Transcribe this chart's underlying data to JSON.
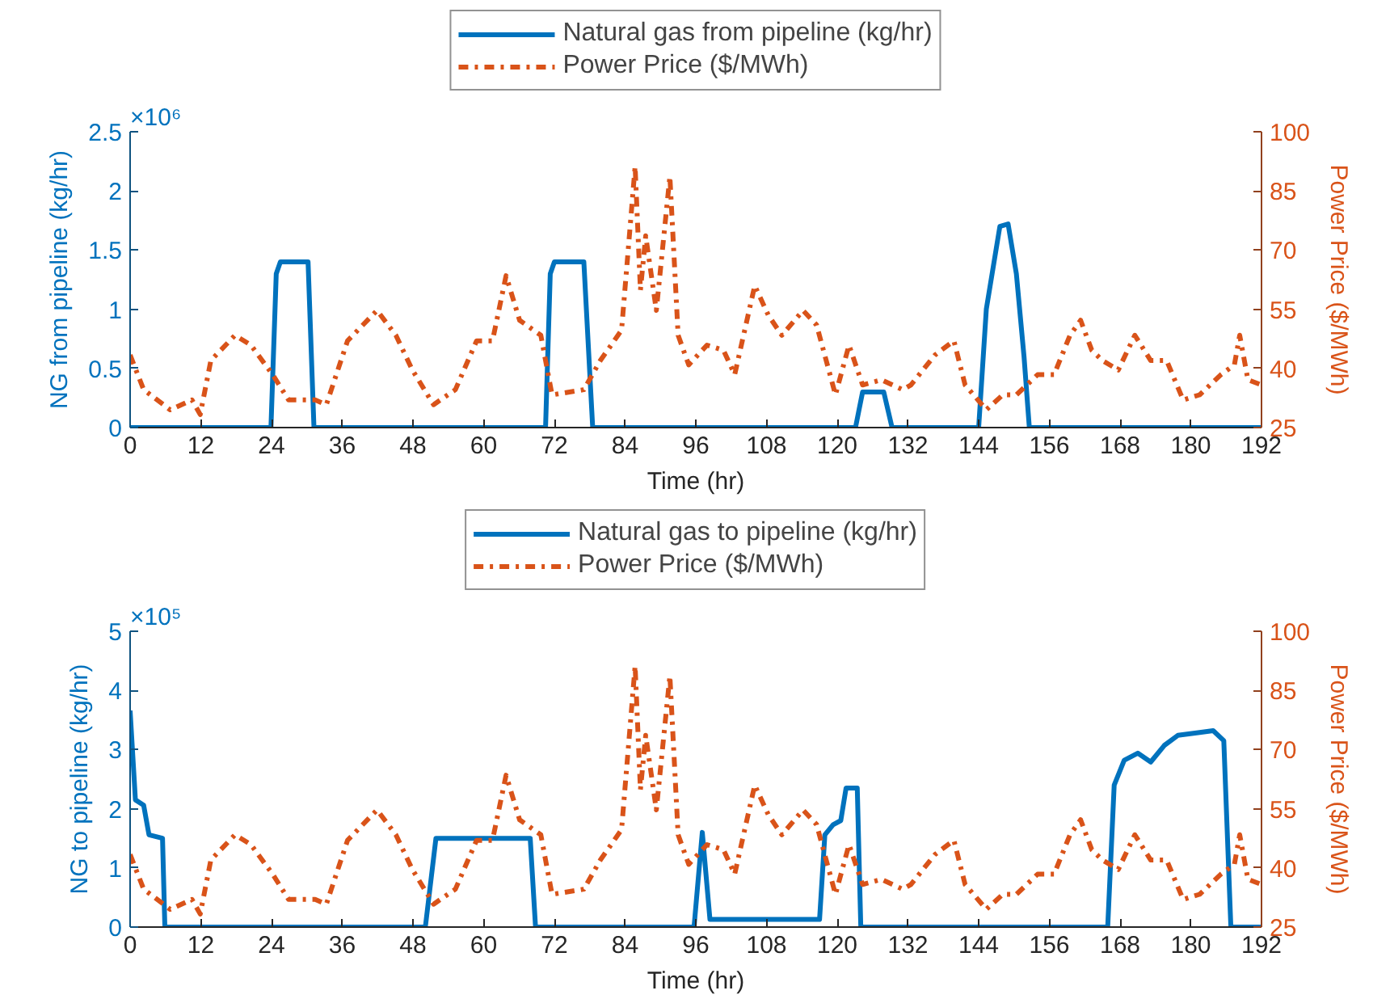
{
  "chart_data": [
    {
      "type": "line",
      "xlabel": "Time (hr)",
      "ylabel": "NG from pipeline (kg/hr)",
      "y2label": "Power Price ($/MWh)",
      "xlim": [
        0,
        192
      ],
      "xticks": [
        0,
        12,
        24,
        36,
        48,
        60,
        72,
        84,
        96,
        108,
        120,
        132,
        144,
        156,
        168,
        180,
        192
      ],
      "ylim": [
        0,
        2.5
      ],
      "yticks": [
        0,
        0.5,
        1,
        1.5,
        2,
        2.5
      ],
      "y2lim": [
        25,
        100
      ],
      "y2ticks": [
        25,
        40,
        55,
        70,
        85,
        100
      ],
      "annotations": [
        "×10⁶"
      ],
      "legend": "top",
      "grid": false,
      "series": [
        {
          "name": "Natural gas from pipeline (kg/hr)",
          "color": "#0072bd",
          "line_style": "solid",
          "x": [
            0,
            23.9,
            24.8,
            25.5,
            30.2,
            31.2,
            70.5,
            71.3,
            72,
            77,
            78.5,
            123.1,
            124.3,
            127.9,
            129.3,
            144,
            145.3,
            147.6,
            149,
            150.4,
            151.7,
            152.6,
            192
          ],
          "values": [
            0,
            0,
            1.3,
            1.4,
            1.4,
            0,
            0,
            1.3,
            1.4,
            1.4,
            0,
            0,
            0.3,
            0.3,
            0,
            0,
            1.0,
            1.7,
            1.72,
            1.3,
            0.6,
            0,
            0
          ]
        },
        {
          "name": "Power Price ($/MWh)",
          "color": "#d95319",
          "line_style": "dashdot",
          "axis": "y2",
          "x": [
            0,
            2.3,
            6.8,
            10.5,
            11.9,
            13.7,
            17.8,
            20.5,
            24.2,
            26.9,
            31.4,
            33.3,
            36.9,
            41.9,
            45.1,
            47.9,
            51.5,
            55.2,
            58.8,
            61.5,
            63.8,
            66.1,
            69.7,
            71.6,
            77,
            79.8,
            83.4,
            85.7,
            86.6,
            87.5,
            89.3,
            91.6,
            93,
            94.8,
            97.9,
            100.7,
            102.6,
            106,
            108.3,
            110.6,
            114.2,
            116.5,
            119.7,
            122,
            124.3,
            127.5,
            131.1,
            132.5,
            136.6,
            139.8,
            141.7,
            145.3,
            148.1,
            150.4,
            154,
            156.8,
            159.5,
            161.3,
            163.2,
            165,
            167.7,
            170.5,
            173.2,
            175.9,
            178.7,
            181.5,
            185.1,
            187.4,
            188.3,
            189.7,
            192
          ],
          "values": [
            43.4,
            34.6,
            29.5,
            32,
            28.3,
            42,
            48.4,
            45.9,
            38.4,
            32,
            32,
            30.8,
            47,
            54.7,
            48.4,
            39.6,
            30.8,
            34.6,
            47,
            47,
            63.5,
            52.2,
            48.4,
            33.3,
            34.6,
            42,
            49.7,
            91.2,
            59.8,
            73.6,
            54.7,
            88.7,
            48.4,
            40.9,
            45.9,
            44.6,
            38.4,
            61,
            53.5,
            48.4,
            54.7,
            51,
            33.3,
            45.9,
            35.8,
            37.1,
            34.6,
            35.8,
            43.4,
            47,
            35.8,
            29.5,
            33.3,
            33.3,
            38.4,
            38.4,
            48.4,
            52.2,
            44.6,
            42,
            39.6,
            48.4,
            42,
            42,
            32,
            33.3,
            38.4,
            40.9,
            48.4,
            37.1,
            35.8
          ]
        }
      ]
    },
    {
      "type": "line",
      "xlabel": "Time (hr)",
      "ylabel": "NG to pipeline (kg/hr)",
      "y2label": "Power Price ($/MWh)",
      "xlim": [
        0,
        192
      ],
      "xticks": [
        0,
        12,
        24,
        36,
        48,
        60,
        72,
        84,
        96,
        108,
        120,
        132,
        144,
        156,
        168,
        180,
        192
      ],
      "ylim": [
        0,
        5
      ],
      "yticks": [
        0,
        1,
        2,
        3,
        4,
        5
      ],
      "y2lim": [
        25,
        100
      ],
      "y2ticks": [
        25,
        40,
        55,
        70,
        85,
        100
      ],
      "annotations": [
        "×10⁵"
      ],
      "legend": "top",
      "grid": false,
      "series": [
        {
          "name": "Natural gas to pipeline (kg/hr)",
          "color": "#0072bd",
          "line_style": "solid",
          "x": [
            0,
            0.9,
            2.3,
            3.2,
            5.5,
            5.9,
            50.1,
            51.9,
            67.9,
            68.8,
            95.7,
            97.1,
            98.4,
            117,
            117.9,
            119.3,
            120.6,
            121.5,
            123.4,
            124,
            165.9,
            167,
            168.7,
            171,
            173.2,
            175.5,
            177.8,
            181.5,
            183.8,
            185.6,
            186.8,
            192
          ],
          "values": [
            3.66,
            2.15,
            2.06,
            1.56,
            1.5,
            0,
            0,
            1.5,
            1.5,
            0,
            0,
            1.6,
            0.13,
            0.13,
            1.56,
            1.73,
            1.8,
            2.35,
            2.35,
            0,
            0,
            2.4,
            2.82,
            2.94,
            2.79,
            3.07,
            3.24,
            3.29,
            3.32,
            3.15,
            0,
            0
          ]
        },
        {
          "name": "Power Price ($/MWh)",
          "color": "#d95319",
          "line_style": "dashdot",
          "axis": "y2",
          "x": [
            0,
            2.3,
            6.8,
            10.5,
            11.9,
            13.7,
            17.8,
            20.5,
            24.2,
            26.9,
            31.4,
            33.3,
            36.9,
            41.9,
            45.1,
            47.9,
            51.5,
            55.2,
            58.8,
            61.5,
            63.8,
            66.1,
            69.7,
            71.6,
            77,
            79.8,
            83.4,
            85.7,
            86.6,
            87.5,
            89.3,
            91.6,
            93,
            94.8,
            97.9,
            100.7,
            102.6,
            106,
            108.3,
            110.6,
            114.2,
            116.5,
            119.7,
            122,
            124.3,
            127.5,
            131.1,
            132.5,
            136.6,
            139.8,
            141.7,
            145.3,
            148.1,
            150.4,
            154,
            156.8,
            159.5,
            161.3,
            163.2,
            165,
            167.7,
            170.5,
            173.2,
            175.9,
            178.7,
            181.5,
            185.1,
            187.4,
            188.3,
            189.7,
            192
          ],
          "values": [
            43.4,
            34.6,
            29.5,
            32,
            28.3,
            42,
            48.4,
            45.9,
            38.4,
            32,
            32,
            30.8,
            47,
            54.7,
            48.4,
            39.6,
            30.8,
            34.6,
            47,
            47,
            63.5,
            52.2,
            48.4,
            33.3,
            34.6,
            42,
            49.7,
            91.2,
            59.8,
            73.6,
            54.7,
            88.7,
            48.4,
            40.9,
            45.9,
            44.6,
            38.4,
            61,
            53.5,
            48.4,
            54.7,
            51,
            33.3,
            45.9,
            35.8,
            37.1,
            34.6,
            35.8,
            43.4,
            47,
            35.8,
            29.5,
            33.3,
            33.3,
            38.4,
            38.4,
            48.4,
            52.2,
            44.6,
            42,
            39.6,
            48.4,
            42,
            42,
            32,
            33.3,
            38.4,
            40.9,
            48.4,
            37.1,
            35.8
          ]
        }
      ]
    }
  ]
}
